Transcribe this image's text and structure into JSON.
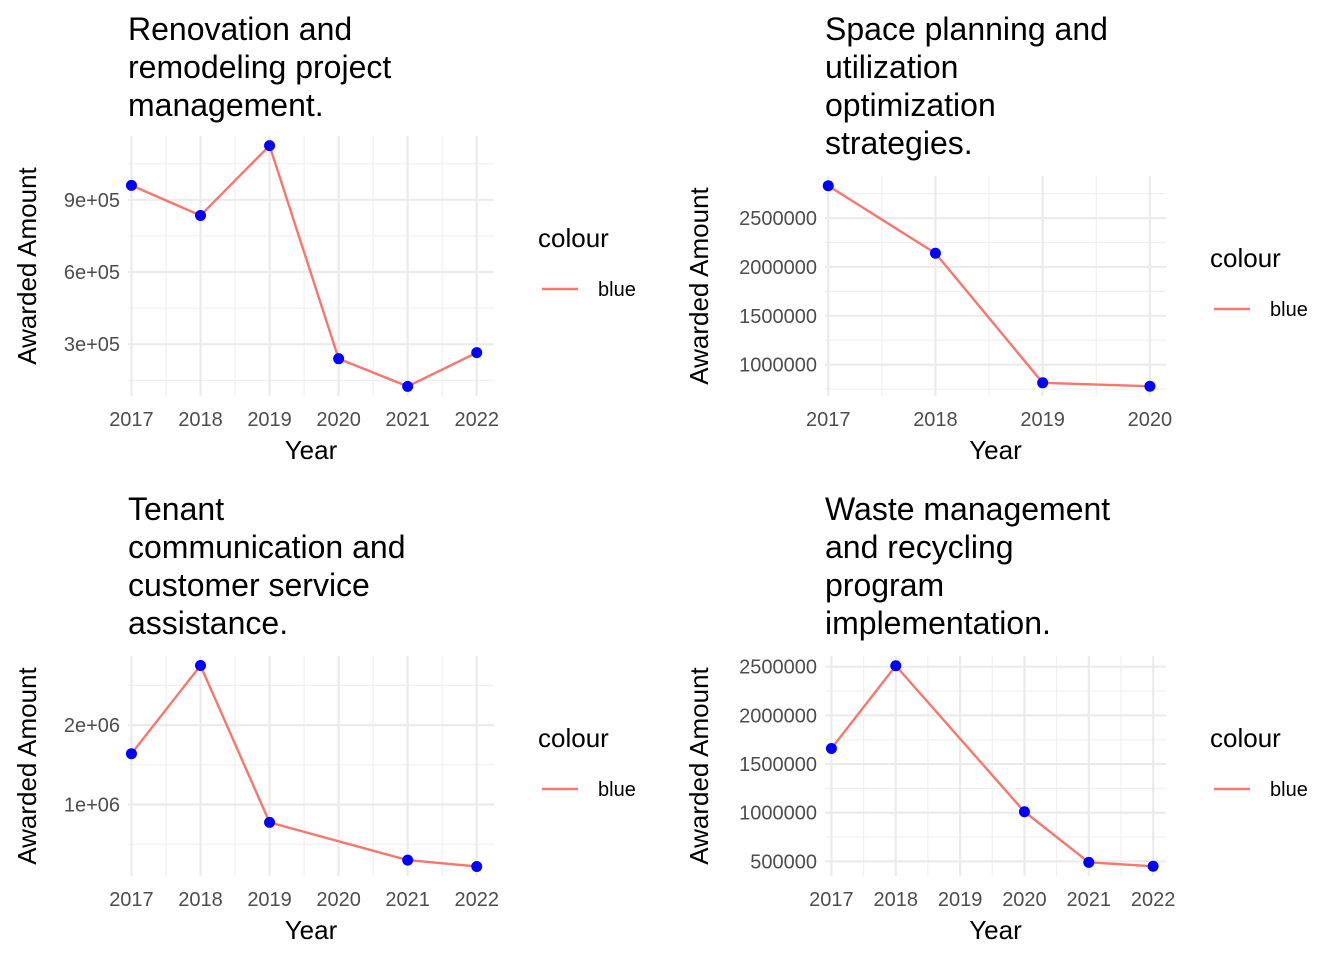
{
  "chart_data": [
    {
      "type": "line",
      "title": "Renovation and remodeling project management.",
      "title_lines": [
        "Renovation and",
        "remodeling project",
        "management."
      ],
      "xlabel": "Year",
      "ylabel": "Awarded Amount",
      "x": [
        2017,
        2018,
        2019,
        2020,
        2021,
        2022
      ],
      "y": [
        960000,
        835000,
        1125000,
        240000,
        125000,
        265000
      ],
      "xlim": [
        2016.95,
        2022.25
      ],
      "ylim": [
        85000,
        1165000
      ],
      "yticks": [
        300000,
        600000,
        900000
      ],
      "ytick_labels": [
        "3e+05",
        "6e+05",
        "9e+05"
      ],
      "line_color": "#F8766D",
      "point_color": "#0000FF",
      "legend": {
        "title": "colour",
        "entries": [
          "blue"
        ]
      },
      "grid": true
    },
    {
      "type": "line",
      "title": "Space planning and utilization optimization strategies.",
      "title_lines": [
        "Space planning and",
        "utilization",
        "optimization",
        "strategies."
      ],
      "xlabel": "Year",
      "ylabel": "Awarded Amount",
      "x": [
        2017,
        2018,
        2019,
        2020
      ],
      "y": [
        2830000,
        2140000,
        815000,
        780000
      ],
      "xlim": [
        2016.97,
        2020.15
      ],
      "ylim": [
        680000,
        2930000
      ],
      "yticks": [
        1000000,
        1500000,
        2000000,
        2500000
      ],
      "ytick_labels": [
        "1000000",
        "1500000",
        "2000000",
        "2500000"
      ],
      "line_color": "#F8766D",
      "point_color": "#0000FF",
      "legend": {
        "title": "colour",
        "entries": [
          "blue"
        ]
      },
      "grid": true
    },
    {
      "type": "line",
      "title": "Tenant communication and customer service assistance.",
      "title_lines": [
        "Tenant",
        "communication and",
        "customer service",
        "assistance."
      ],
      "xlabel": "Year",
      "ylabel": "Awarded Amount",
      "x": [
        2017,
        2018,
        2019,
        2021,
        2022
      ],
      "y": [
        1640000,
        2750000,
        775000,
        300000,
        220000
      ],
      "xlim": [
        2016.95,
        2022.25
      ],
      "ylim": [
        100000,
        2870000
      ],
      "yticks": [
        1000000,
        2000000
      ],
      "ytick_labels": [
        "1e+06",
        "2e+06"
      ],
      "line_color": "#F8766D",
      "point_color": "#0000FF",
      "legend": {
        "title": "colour",
        "entries": [
          "blue"
        ]
      },
      "grid": true
    },
    {
      "type": "line",
      "title": "Waste management and recycling program implementation.",
      "title_lines": [
        "Waste management",
        "and recycling",
        "program",
        "implementation."
      ],
      "xlabel": "Year",
      "ylabel": "Awarded Amount",
      "x": [
        2017,
        2018,
        2020,
        2021,
        2022
      ],
      "y": [
        1660000,
        2510000,
        1010000,
        490000,
        450000
      ],
      "xlim": [
        2016.9,
        2022.2
      ],
      "ylim": [
        350000,
        2610000
      ],
      "yticks": [
        500000,
        1000000,
        1500000,
        2000000,
        2500000
      ],
      "ytick_labels": [
        "500000",
        "1000000",
        "1500000",
        "2000000",
        "2500000"
      ],
      "line_color": "#F8766D",
      "point_color": "#0000FF",
      "legend": {
        "title": "colour",
        "entries": [
          "blue"
        ]
      },
      "grid": true
    }
  ]
}
